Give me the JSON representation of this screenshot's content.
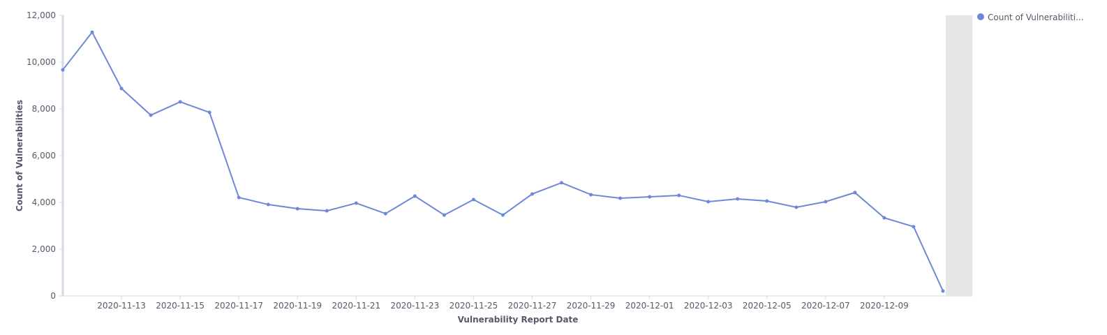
{
  "chart_data": {
    "type": "line",
    "x_label": "Vulnerability Report Date",
    "y_label": "Count of Vulnerabilities",
    "x": [
      "2020-11-11",
      "2020-11-12",
      "2020-11-13",
      "2020-11-14",
      "2020-11-15",
      "2020-11-16",
      "2020-11-17",
      "2020-11-18",
      "2020-11-19",
      "2020-11-20",
      "2020-11-21",
      "2020-11-22",
      "2020-11-23",
      "2020-11-24",
      "2020-11-25",
      "2020-11-26",
      "2020-11-27",
      "2020-11-28",
      "2020-11-29",
      "2020-11-30",
      "2020-12-01",
      "2020-12-02",
      "2020-12-03",
      "2020-12-04",
      "2020-12-05",
      "2020-12-06",
      "2020-12-07",
      "2020-12-08",
      "2020-12-09",
      "2020-12-10",
      "2020-12-11"
    ],
    "series": [
      {
        "name": "Count of Vulnerabiliti...",
        "color": "#6f87d8",
        "values": [
          9670,
          11280,
          8870,
          7730,
          8300,
          7850,
          4210,
          3910,
          3730,
          3640,
          3970,
          3520,
          4270,
          3460,
          4120,
          3460,
          4360,
          4840,
          4330,
          4180,
          4240,
          4300,
          4030,
          4150,
          4060,
          3790,
          4030,
          4420,
          3340,
          2960,
          210
        ]
      }
    ],
    "xlim": [
      "2020-11-11",
      "2020-12-12"
    ],
    "xticks": [
      "2020-11-13",
      "2020-11-15",
      "2020-11-17",
      "2020-11-19",
      "2020-11-21",
      "2020-11-23",
      "2020-11-25",
      "2020-11-27",
      "2020-11-29",
      "2020-12-01",
      "2020-12-03",
      "2020-12-05",
      "2020-12-07",
      "2020-12-09"
    ],
    "ylim": [
      0,
      12000
    ],
    "yticks": [
      0,
      {
        "value": 2000,
        "label": "2,000"
      },
      {
        "value": 4000,
        "label": "4,000"
      },
      {
        "value": 6000,
        "label": "6,000"
      },
      {
        "value": 8000,
        "label": "8,000"
      },
      {
        "value": 10000,
        "label": "10,000"
      },
      {
        "value": 12000,
        "label": "12,000"
      }
    ],
    "legend": "top-right"
  }
}
